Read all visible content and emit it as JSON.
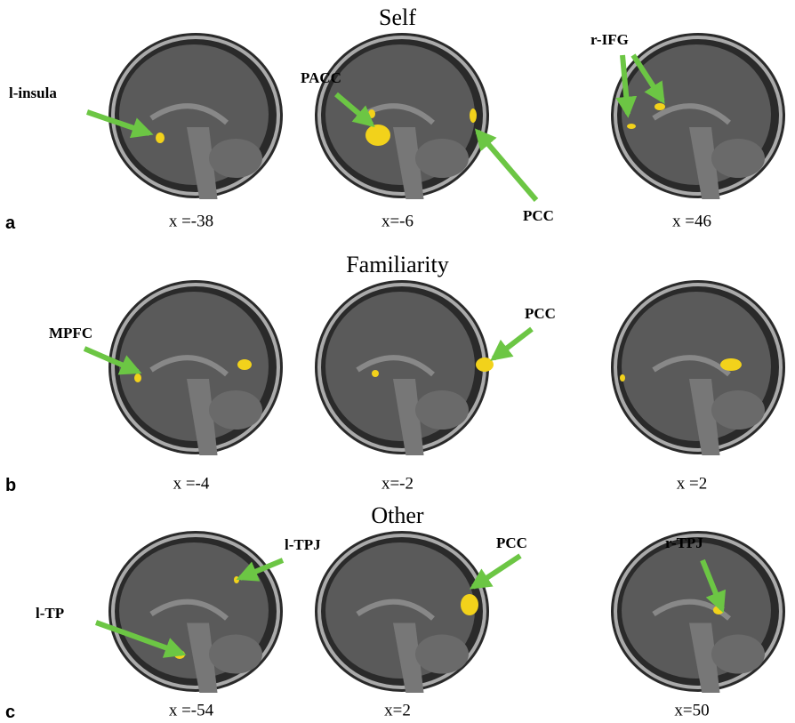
{
  "rows": [
    {
      "panel": "a",
      "title": "Self",
      "images": [
        {
          "coordinate": "x =-38",
          "annotations": [
            "l-insula"
          ]
        },
        {
          "coordinate": "x=-6",
          "annotations": [
            "PACC",
            "PCC"
          ]
        },
        {
          "coordinate": "x =46",
          "annotations": [
            "r-IFG"
          ]
        }
      ]
    },
    {
      "panel": "b",
      "title": "Familiarity",
      "images": [
        {
          "coordinate": "x =-4",
          "annotations": [
            "MPFC"
          ]
        },
        {
          "coordinate": "x=-2",
          "annotations": [
            "PCC"
          ]
        },
        {
          "coordinate": "x =2",
          "annotations": []
        }
      ]
    },
    {
      "panel": "c",
      "title": "Other",
      "images": [
        {
          "coordinate": "x =-54",
          "annotations": [
            "l-TPJ",
            "l-TP"
          ]
        },
        {
          "coordinate": "x=2",
          "annotations": [
            "PCC"
          ]
        },
        {
          "coordinate": "x=50",
          "annotations": [
            "r-TPJ"
          ]
        }
      ]
    }
  ]
}
